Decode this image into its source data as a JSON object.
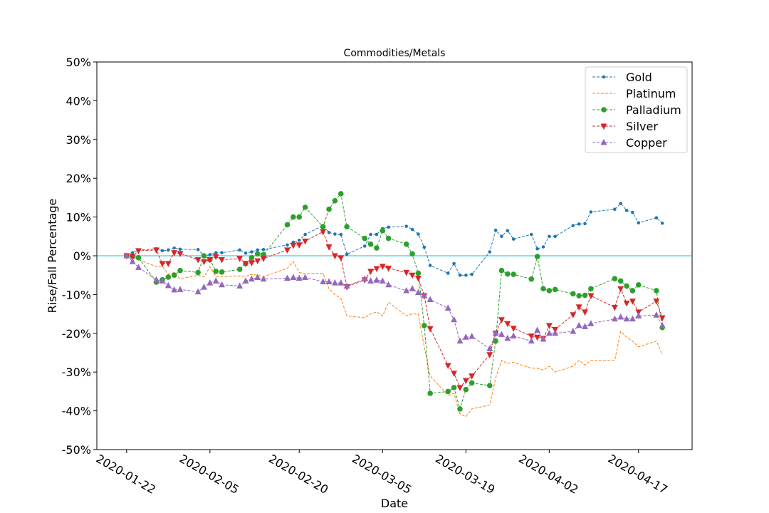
{
  "chart_data": {
    "type": "line",
    "title": "Commodities/Metals",
    "xlabel": "Date",
    "ylabel": "Rise/Fall Percentage",
    "ylim": [
      -50,
      50
    ],
    "yticks": [
      "-50%",
      "-40%",
      "-30%",
      "-20%",
      "-10%",
      "0%",
      "10%",
      "20%",
      "30%",
      "40%",
      "50%"
    ],
    "yticks_values": [
      -50,
      -40,
      -30,
      -20,
      -10,
      0,
      10,
      20,
      30,
      40,
      50
    ],
    "xlim": [
      "2020-01-17",
      "2020-04-26"
    ],
    "xticks": [
      "2020-01-22",
      "2020-02-05",
      "2020-02-20",
      "2020-03-05",
      "2020-03-19",
      "2020-04-02",
      "2020-04-17"
    ],
    "legend_position": "top-right",
    "zero_line": true,
    "grid": false,
    "dates": [
      "2020-01-22",
      "2020-01-23",
      "2020-01-24",
      "2020-01-27",
      "2020-01-28",
      "2020-01-29",
      "2020-01-30",
      "2020-01-31",
      "2020-02-03",
      "2020-02-04",
      "2020-02-05",
      "2020-02-06",
      "2020-02-07",
      "2020-02-10",
      "2020-02-11",
      "2020-02-12",
      "2020-02-13",
      "2020-02-14",
      "2020-02-18",
      "2020-02-19",
      "2020-02-20",
      "2020-02-21",
      "2020-02-24",
      "2020-02-25",
      "2020-02-26",
      "2020-02-27",
      "2020-02-28",
      "2020-03-02",
      "2020-03-03",
      "2020-03-04",
      "2020-03-05",
      "2020-03-06",
      "2020-03-09",
      "2020-03-10",
      "2020-03-11",
      "2020-03-12",
      "2020-03-13",
      "2020-03-16",
      "2020-03-17",
      "2020-03-18",
      "2020-03-19",
      "2020-03-20",
      "2020-03-23",
      "2020-03-24",
      "2020-03-25",
      "2020-03-26",
      "2020-03-27",
      "2020-03-30",
      "2020-03-31",
      "2020-04-01",
      "2020-04-02",
      "2020-04-03",
      "2020-04-06",
      "2020-04-07",
      "2020-04-08",
      "2020-04-09",
      "2020-04-13",
      "2020-04-14",
      "2020-04-15",
      "2020-04-16",
      "2020-04-17",
      "2020-04-20",
      "2020-04-21"
    ],
    "series": [
      {
        "name": "Gold",
        "color": "#1f77b4",
        "marker": "point",
        "values": [
          0,
          0.8,
          1.5,
          1.8,
          1.3,
          1.5,
          2.0,
          1.7,
          1.6,
          0.0,
          0.3,
          0.8,
          0.8,
          1.5,
          0.7,
          1.0,
          1.5,
          1.6,
          2.8,
          3.5,
          4.0,
          5.5,
          7.8,
          6.0,
          5.6,
          5.5,
          0.4,
          2.5,
          5.5,
          5.5,
          7.0,
          7.4,
          7.6,
          6.8,
          5.6,
          2.2,
          -2.5,
          -4.5,
          -2.0,
          -5.0,
          -5.0,
          -4.8,
          1.0,
          6.6,
          5.0,
          6.5,
          4.3,
          5.5,
          1.8,
          2.3,
          5.0,
          5.0,
          7.8,
          8.2,
          8.3,
          11.3,
          12.0,
          13.5,
          11.7,
          11.2,
          8.5,
          9.8,
          8.4
        ]
      },
      {
        "name": "Platinum",
        "color": "#ff7f0e",
        "marker": "none",
        "values": [
          0,
          -0.5,
          -1.0,
          -2.8,
          -2.7,
          -4.8,
          -4.3,
          -6.0,
          -5.0,
          -5.5,
          -2.8,
          -5.3,
          -5.4,
          -5.2,
          -5.3,
          -4.8,
          -5.0,
          -5.4,
          -3.2,
          -1.5,
          -4.3,
          -4.6,
          -4.5,
          -8.5,
          -10.0,
          -11.0,
          -15.5,
          -16.0,
          -15.0,
          -14.5,
          -15.5,
          -12.0,
          -15.5,
          -15.0,
          -15.0,
          -23.5,
          -31.0,
          -36.0,
          -35.5,
          -40.8,
          -41.5,
          -39.5,
          -38.5,
          -31.5,
          -27.0,
          -27.8,
          -27.5,
          -29.0,
          -29.0,
          -29.5,
          -28.5,
          -30.0,
          -28.5,
          -27.0,
          -28.2,
          -27.0,
          -27.0,
          -19.5,
          -21.0,
          -22.0,
          -23.5,
          -22.0,
          -25.5
        ]
      },
      {
        "name": "Palladium",
        "color": "#2ca02c",
        "marker": "circle",
        "values": [
          0,
          -0.2,
          -0.5,
          -6.8,
          -6.2,
          -5.5,
          -5.0,
          -3.8,
          -4.3,
          0.0,
          -1.0,
          -4.0,
          -4.2,
          -3.5,
          -2.0,
          -0.5,
          0.5,
          0.3,
          8.0,
          10.0,
          10.0,
          12.5,
          7.5,
          12.0,
          14.2,
          16.0,
          7.5,
          4.5,
          3.0,
          2.0,
          6.5,
          4.5,
          3.0,
          0.5,
          -4.5,
          -18.0,
          -35.5,
          -35.0,
          -34.0,
          -39.5,
          -34.5,
          -32.8,
          -33.5,
          -22.0,
          -3.8,
          -4.7,
          -4.8,
          -6.0,
          -0.2,
          -8.5,
          -9.0,
          -8.7,
          -9.8,
          -10.3,
          -10.2,
          -8.5,
          -5.9,
          -6.5,
          -7.8,
          -9.0,
          -7.5,
          -9.0,
          -18.5
        ]
      },
      {
        "name": "Silver",
        "color": "#d62728",
        "marker": "triangle-down",
        "values": [
          0,
          -0.2,
          1.3,
          1.5,
          -2.0,
          -2.0,
          0.8,
          0.6,
          -1.0,
          -1.5,
          -1.0,
          -0.2,
          -1.0,
          -0.7,
          -2.0,
          -1.8,
          -1.3,
          -0.7,
          1.5,
          2.7,
          2.8,
          3.8,
          6.2,
          2.3,
          0.0,
          -0.5,
          -8.0,
          -6.2,
          -4.0,
          -3.3,
          -2.7,
          -3.2,
          -4.3,
          -5.0,
          -5.8,
          -10.3,
          -18.8,
          -28.3,
          -30.3,
          -34.0,
          -32.2,
          -31.0,
          -25.5,
          -20.0,
          -16.5,
          -17.5,
          -18.7,
          -20.7,
          -21.0,
          -21.3,
          -18.0,
          -19.0,
          -15.2,
          -13.2,
          -14.5,
          -10.3,
          -13.3,
          -8.5,
          -12.2,
          -11.7,
          -14.5,
          -11.7,
          -16.0
        ]
      },
      {
        "name": "Copper",
        "color": "#9467bd",
        "marker": "triangle-up",
        "values": [
          0,
          -1.5,
          -3.0,
          -6.2,
          -6.5,
          -7.7,
          -8.8,
          -8.7,
          -9.3,
          -8.1,
          -7.0,
          -6.5,
          -7.5,
          -7.8,
          -6.5,
          -6.0,
          -5.6,
          -6.0,
          -5.8,
          -5.6,
          -5.8,
          -5.6,
          -6.7,
          -6.7,
          -7.0,
          -7.0,
          -7.8,
          -6.0,
          -6.5,
          -6.3,
          -6.5,
          -7.5,
          -9.0,
          -8.5,
          -9.5,
          -10.3,
          -11.3,
          -13.5,
          -16.5,
          -22.0,
          -21.0,
          -20.8,
          -24.0,
          -20.0,
          -20.3,
          -21.3,
          -20.7,
          -22.0,
          -19.2,
          -21.5,
          -20.0,
          -20.0,
          -19.5,
          -18.0,
          -18.3,
          -17.5,
          -16.3,
          -15.8,
          -16.3,
          -16.3,
          -15.5,
          -15.3,
          -18.0
        ]
      }
    ]
  }
}
